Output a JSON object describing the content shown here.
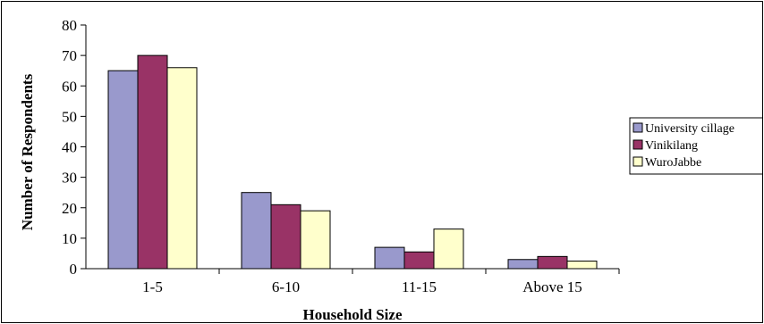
{
  "chart_data": {
    "type": "bar",
    "categories": [
      "1-5",
      "6-10",
      "11-15",
      "Above 15"
    ],
    "series": [
      {
        "name": "University cillage",
        "values": [
          65,
          25,
          7,
          3
        ],
        "color": "#9999cc"
      },
      {
        "name": "Vinikilang",
        "values": [
          70,
          21,
          5.5,
          4
        ],
        "color": "#993366"
      },
      {
        "name": "WuroJabbe",
        "values": [
          66,
          19,
          13,
          2.5
        ],
        "color": "#ffffcc"
      }
    ],
    "title": "",
    "xlabel": "Household Size",
    "ylabel": "Number of Respondents",
    "ylim": [
      0,
      80
    ],
    "yticks": [
      0,
      10,
      20,
      30,
      40,
      50,
      60,
      70,
      80
    ],
    "grid": false,
    "legend_position": "right"
  }
}
